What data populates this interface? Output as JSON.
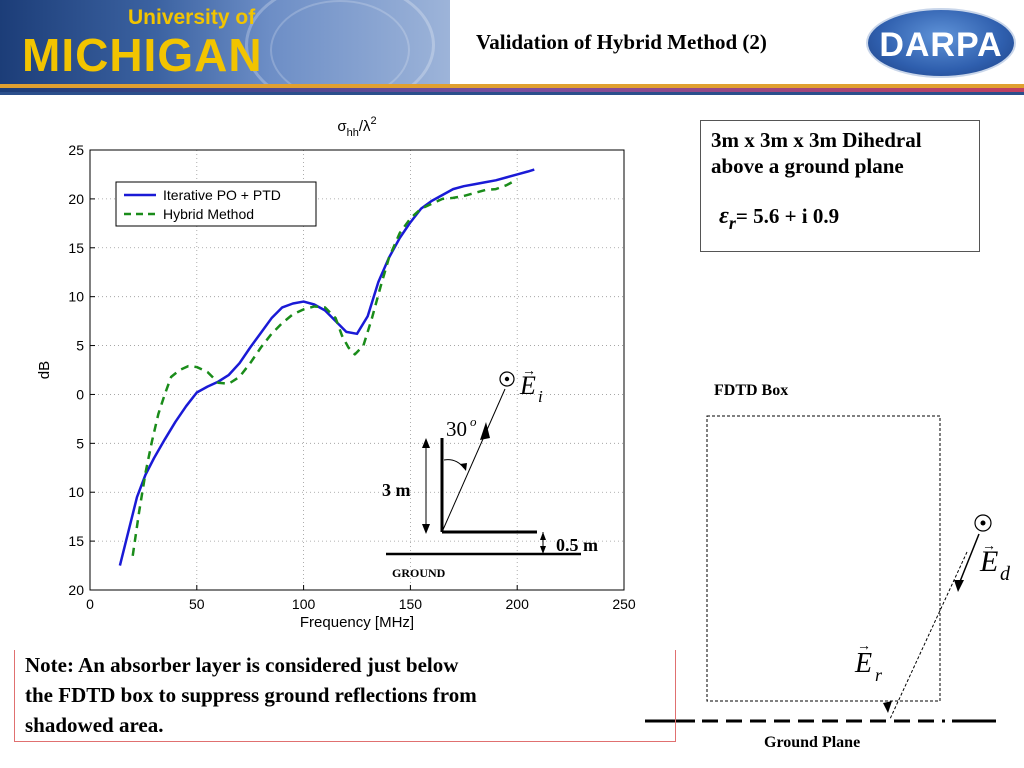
{
  "header": {
    "university_top": "University of",
    "university_main": "MICHIGAN",
    "title": "Validation of Hybrid Method (2)",
    "sponsor_logo": "DARPA"
  },
  "info_box": {
    "line1": "3m x 3m x 3m Dihedral",
    "line2": "above a ground plane",
    "epsilon_symbol": "ε",
    "epsilon_sub": "r",
    "epsilon_value": "= 5.6 + i 0.9"
  },
  "note": {
    "line1": "Note: An absorber layer is considered just below",
    "line2": "the FDTD box to suppress ground reflections from",
    "line3": "shadowed area."
  },
  "chart_data": {
    "type": "line",
    "title": "σhh/λ2",
    "xlabel": "Frequency [MHz]",
    "ylabel": "dB",
    "xlim": [
      0,
      250
    ],
    "ylim": [
      -20,
      25
    ],
    "x_ticks": [
      0,
      50,
      100,
      150,
      200,
      250
    ],
    "y_ticks": [
      25,
      20,
      15,
      10,
      5,
      0,
      -5,
      -10,
      -15,
      -20
    ],
    "y_tick_labels": [
      "25",
      "20",
      "15",
      "10",
      "5",
      "0",
      "5",
      "10",
      "15",
      "20"
    ],
    "x_tick_labels": [
      "0",
      "50",
      "100",
      "150",
      "200",
      "250"
    ],
    "grid": true,
    "legend_position": "top-left",
    "series": [
      {
        "name": "Iterative PO + PTD",
        "color": "#1a1ad6",
        "style": "solid",
        "x": [
          14,
          18,
          22,
          26,
          30,
          35,
          40,
          45,
          50,
          55,
          60,
          65,
          70,
          75,
          80,
          85,
          90,
          95,
          100,
          105,
          110,
          115,
          120,
          125,
          130,
          135,
          140,
          145,
          150,
          155,
          160,
          165,
          170,
          175,
          180,
          185,
          190,
          195,
          200,
          205,
          208
        ],
        "y": [
          -17.5,
          -14,
          -10.5,
          -8.2,
          -6.5,
          -4.6,
          -2.8,
          -1.2,
          0.2,
          0.8,
          1.3,
          2.0,
          3.2,
          4.8,
          6.3,
          7.8,
          8.9,
          9.3,
          9.5,
          9.2,
          8.6,
          7.5,
          6.4,
          6.2,
          8.0,
          11.5,
          14.0,
          16.0,
          17.6,
          19.0,
          19.8,
          20.4,
          21.0,
          21.3,
          21.5,
          21.7,
          21.9,
          22.2,
          22.5,
          22.8,
          23.0
        ]
      },
      {
        "name": "Hybrid Method",
        "color": "#1a8c1a",
        "style": "dashed",
        "x": [
          20,
          23,
          26,
          29,
          32,
          35,
          38,
          42,
          46,
          50,
          55,
          60,
          65,
          70,
          75,
          80,
          85,
          90,
          95,
          100,
          105,
          110,
          115,
          118,
          121,
          124,
          128,
          132,
          136,
          140,
          145,
          150,
          155,
          160,
          165,
          170,
          175,
          180,
          185,
          190,
          195,
          200
        ],
        "y": [
          -16.5,
          -12,
          -8,
          -4.8,
          -2,
          0,
          1.8,
          2.5,
          2.9,
          2.8,
          2.3,
          1.2,
          1.1,
          1.8,
          3.2,
          4.8,
          6.2,
          7.3,
          8.2,
          8.7,
          9.0,
          8.9,
          7.8,
          6.0,
          4.8,
          4.1,
          5.0,
          7.8,
          11.0,
          14.0,
          16.5,
          18.0,
          19.0,
          19.5,
          20.0,
          20.1,
          20.3,
          20.6,
          20.9,
          21.0,
          21.4,
          22.0
        ]
      }
    ]
  },
  "inset_diagram": {
    "incident_field_label": "E",
    "incident_sub": "i",
    "angle_label": "30",
    "angle_sup": "o",
    "height_label": "3 m",
    "offset_label": "0.5 m",
    "ground_label": "GROUND"
  },
  "fdtd_diagram": {
    "box_label": "FDTD Box",
    "diffracted_label": "E",
    "diffracted_sub": "d",
    "reflected_label": "E",
    "reflected_sub": "r",
    "ground_plane_label": "Ground Plane"
  }
}
